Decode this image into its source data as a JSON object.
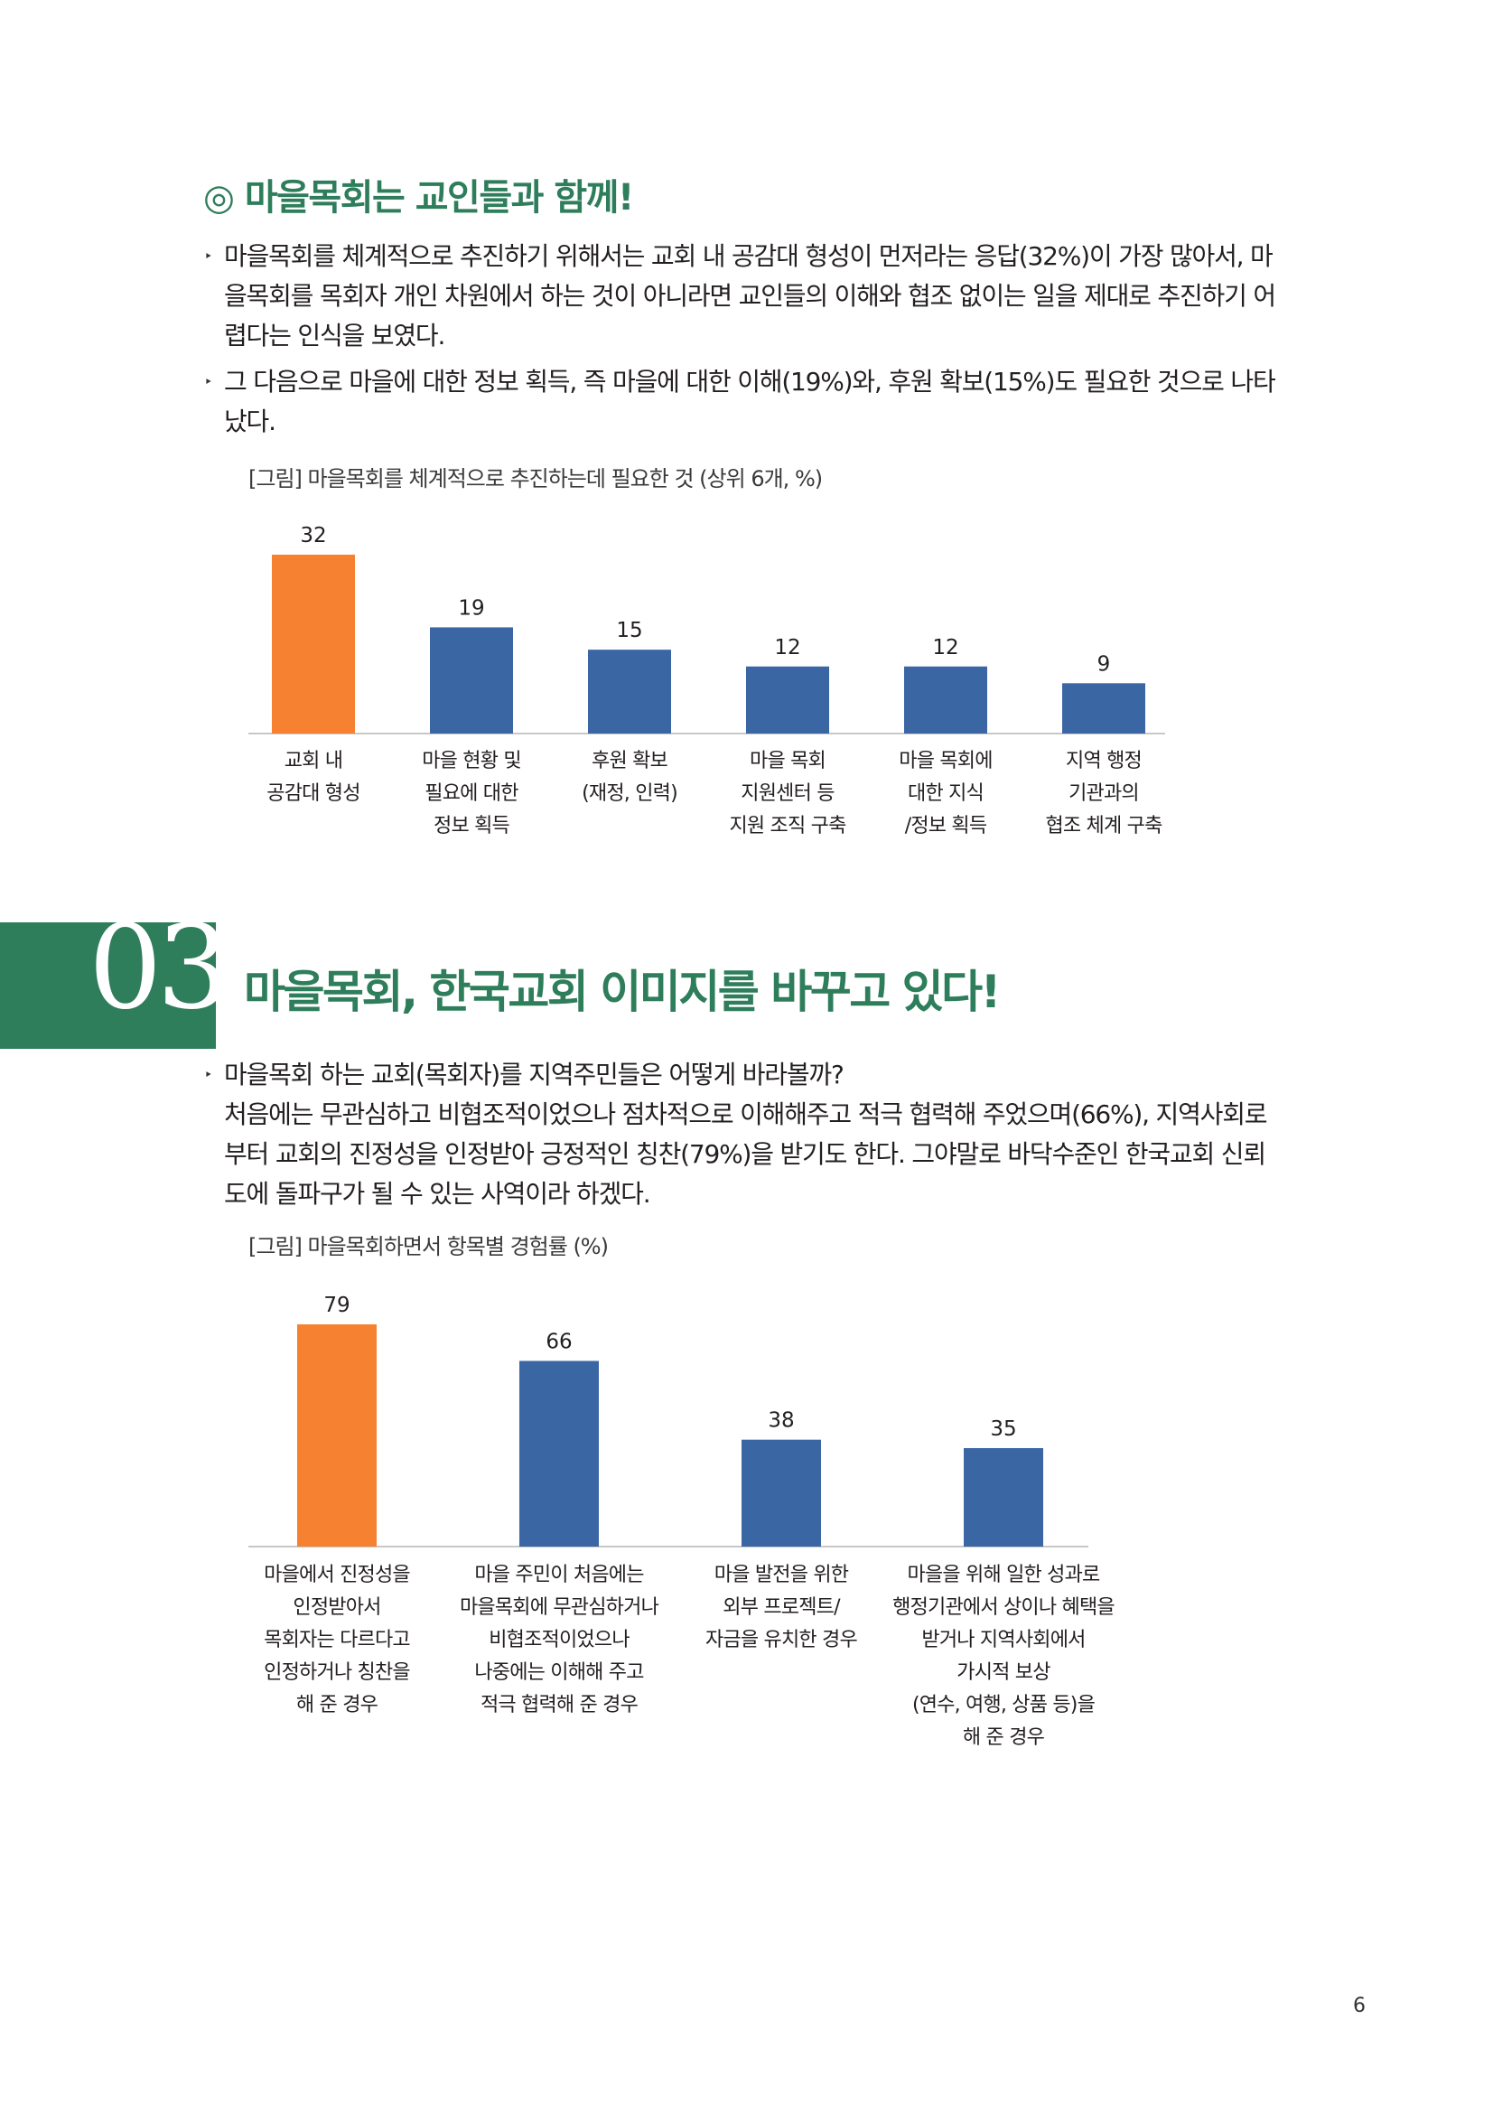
{
  "section": {
    "title": "◎ 마을목회는 교인들과 함께!"
  },
  "bullets1": [
    {
      "lines": [
        "마을목회를 체계적으로 추진하기 위해서는 교회 내 공감대 형성이 먼저라는 응답(32%)이 가장 많아서, 마",
        "을목회를 목회자 개인 차원에서 하는 것이 아니라면 교인들의 이해와 협조 없이는 일을 제대로 추진하기 어",
        "렵다는 인식을 보였다."
      ]
    },
    {
      "lines": [
        "그 다음으로 마을에 대한 정보 획득, 즉 마을에 대한 이해(19%)와, 후원 확보(15%)도 필요한 것으로 나타",
        "났다."
      ]
    }
  ],
  "figure1": {
    "caption": "[그림] 마을목회를 체계적으로 추진하는데 필요한 것 (상위 6개, %)"
  },
  "chapter": {
    "number": "03",
    "title": "마을목회, 한국교회 이미지를 바꾸고 있다!"
  },
  "bullets2": [
    {
      "lines": [
        "마을목회 하는 교회(목회자)를 지역주민들은 어떻게 바라볼까?",
        "처음에는 무관심하고 비협조적이었으나 점차적으로 이해해주고 적극 협력해 주었으며(66%), 지역사회로",
        "부터 교회의 진정성을 인정받아 긍정적인 칭찬(79%)을 받기도 한다. 그야말로 바닥수준인 한국교회 신뢰",
        "도에 돌파구가 될 수 있는 사역이라 하겠다."
      ]
    }
  ],
  "figure2": {
    "caption": "[그림] 마을목회하면서 항목별 경험률 (%)"
  },
  "page_number": "6",
  "colors": {
    "accent": "#2e7d5b",
    "highlight_bar": "#f58131",
    "bar": "#3a66a4"
  },
  "chart_data": [
    {
      "type": "bar",
      "title": "",
      "categories": [
        [
          "교회 내",
          "공감대 형성"
        ],
        [
          "마을 현황 및",
          "필요에 대한",
          "정보 획득"
        ],
        [
          "후원 확보",
          "(재정, 인력)"
        ],
        [
          "마을 목회",
          "지원센터 등",
          "지원 조직 구축"
        ],
        [
          "마을 목회에",
          "대한 지식",
          "/정보 획득"
        ],
        [
          "지역 행정",
          "기관과의",
          "협조 체계 구축"
        ]
      ],
      "values": [
        32,
        19,
        15,
        12,
        12,
        9
      ],
      "value_labels": [
        "32",
        "19",
        "15",
        "12",
        "12",
        "9"
      ],
      "highlight_index": 0,
      "ylim": [
        0,
        32
      ],
      "grid": false,
      "legend": "none"
    },
    {
      "type": "bar",
      "title": "",
      "categories": [
        [
          "마을에서 진정성을",
          "인정받아서",
          "목회자는 다르다고",
          "인정하거나 칭찬을",
          "해 준 경우"
        ],
        [
          "마을 주민이 처음에는",
          "마을목회에 무관심하거나",
          "비협조적이었으나",
          "나중에는 이해해 주고",
          "적극 협력해 준 경우"
        ],
        [
          "마을 발전을 위한",
          "외부 프로젝트/",
          "자금을 유치한 경우"
        ],
        [
          "마을을 위해 일한 성과로",
          "행정기관에서 상이나 혜택을",
          "받거나 지역사회에서",
          "가시적 보상",
          "(연수, 여행, 상품 등)을",
          "해 준 경우"
        ]
      ],
      "values": [
        79,
        66,
        38,
        35
      ],
      "value_labels": [
        "79",
        "66",
        "38",
        "35"
      ],
      "highlight_index": 0,
      "ylim": [
        0,
        79
      ],
      "grid": false,
      "legend": "none"
    }
  ]
}
